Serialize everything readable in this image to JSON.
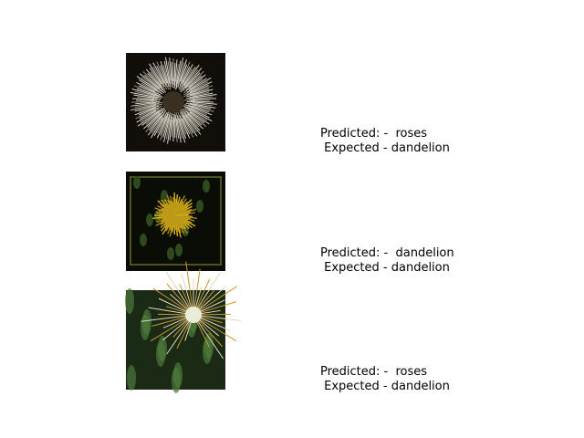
{
  "items": [
    {
      "predicted": "Predicted: -  roses",
      "expected": " Expected - dandelion"
    },
    {
      "predicted": "Predicted: -  dandelion",
      "expected": " Expected - dandelion"
    },
    {
      "predicted": "Predicted: -  roses",
      "expected": " Expected - dandelion"
    }
  ]
}
